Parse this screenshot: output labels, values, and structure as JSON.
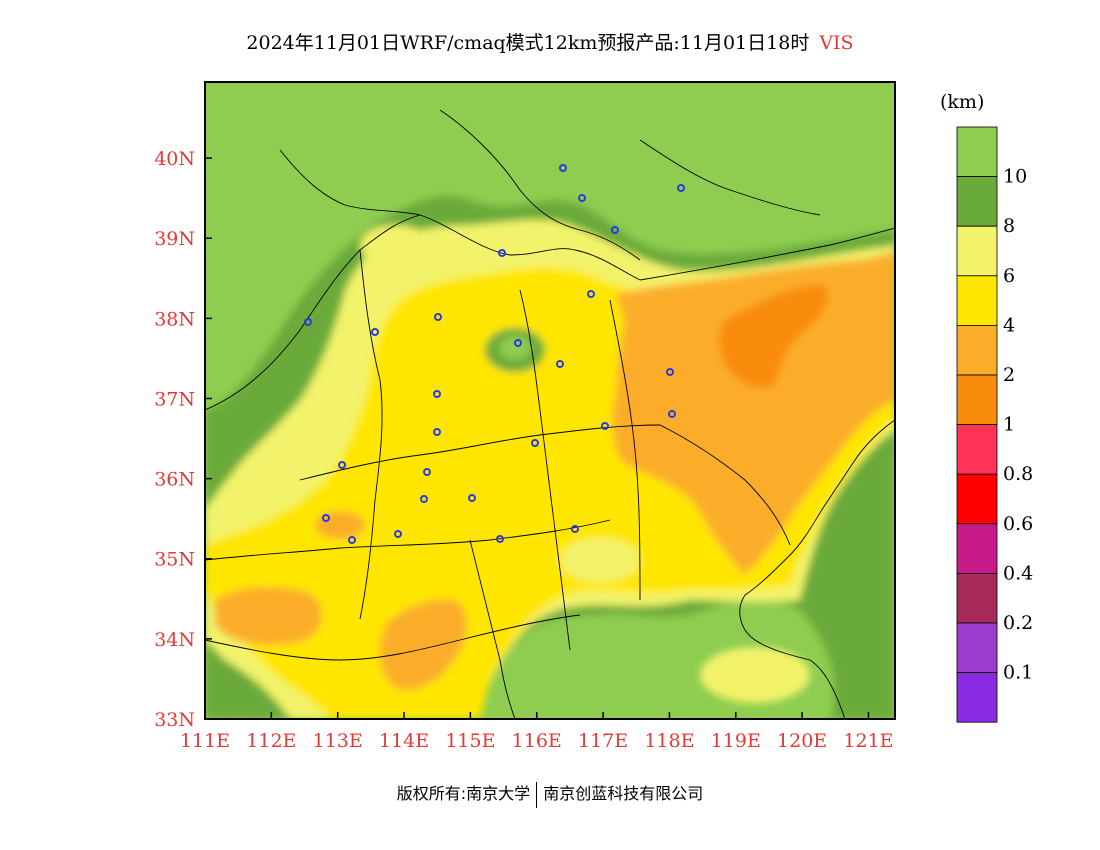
{
  "header": {
    "title": "2024年11月01日WRF/cmaq模式12km预报产品:11月01日18时",
    "variable": "VIS"
  },
  "map": {
    "lon_range": [
      111,
      121.4
    ],
    "lat_range": [
      33,
      40.95
    ],
    "x_ticks": [
      "111E",
      "112E",
      "113E",
      "114E",
      "115E",
      "116E",
      "117E",
      "118E",
      "119E",
      "120E",
      "121E"
    ],
    "y_ticks": [
      "33N",
      "34N",
      "35N",
      "36N",
      "37N",
      "38N",
      "39N",
      "40N"
    ],
    "colors": {
      "gt10": "#8fcd50",
      "8_10": "#6aaa3a",
      "6_8": "#f2f36a",
      "4_6": "#ffe600",
      "2_4": "#fbad29",
      "1_2": "#f98c0a",
      "label_red": "#e53935"
    },
    "city_marker_count": 26
  },
  "legend": {
    "unit": "(km)",
    "labels": [
      "10",
      "8",
      "6",
      "4",
      "2",
      "1",
      "0.8",
      "0.6",
      "0.4",
      "0.2",
      "0.1"
    ],
    "colors": [
      "#8fcd50",
      "#6aaa3a",
      "#f2f36a",
      "#ffe600",
      "#fbad29",
      "#f98c0a",
      "#ff3355",
      "#ff0000",
      "#c8198a",
      "#a82a5a",
      "#9b3ccc",
      "#8a2be2"
    ]
  },
  "footer": {
    "left": "版权所有:南京大学",
    "right": "南京创蓝科技有限公司"
  }
}
